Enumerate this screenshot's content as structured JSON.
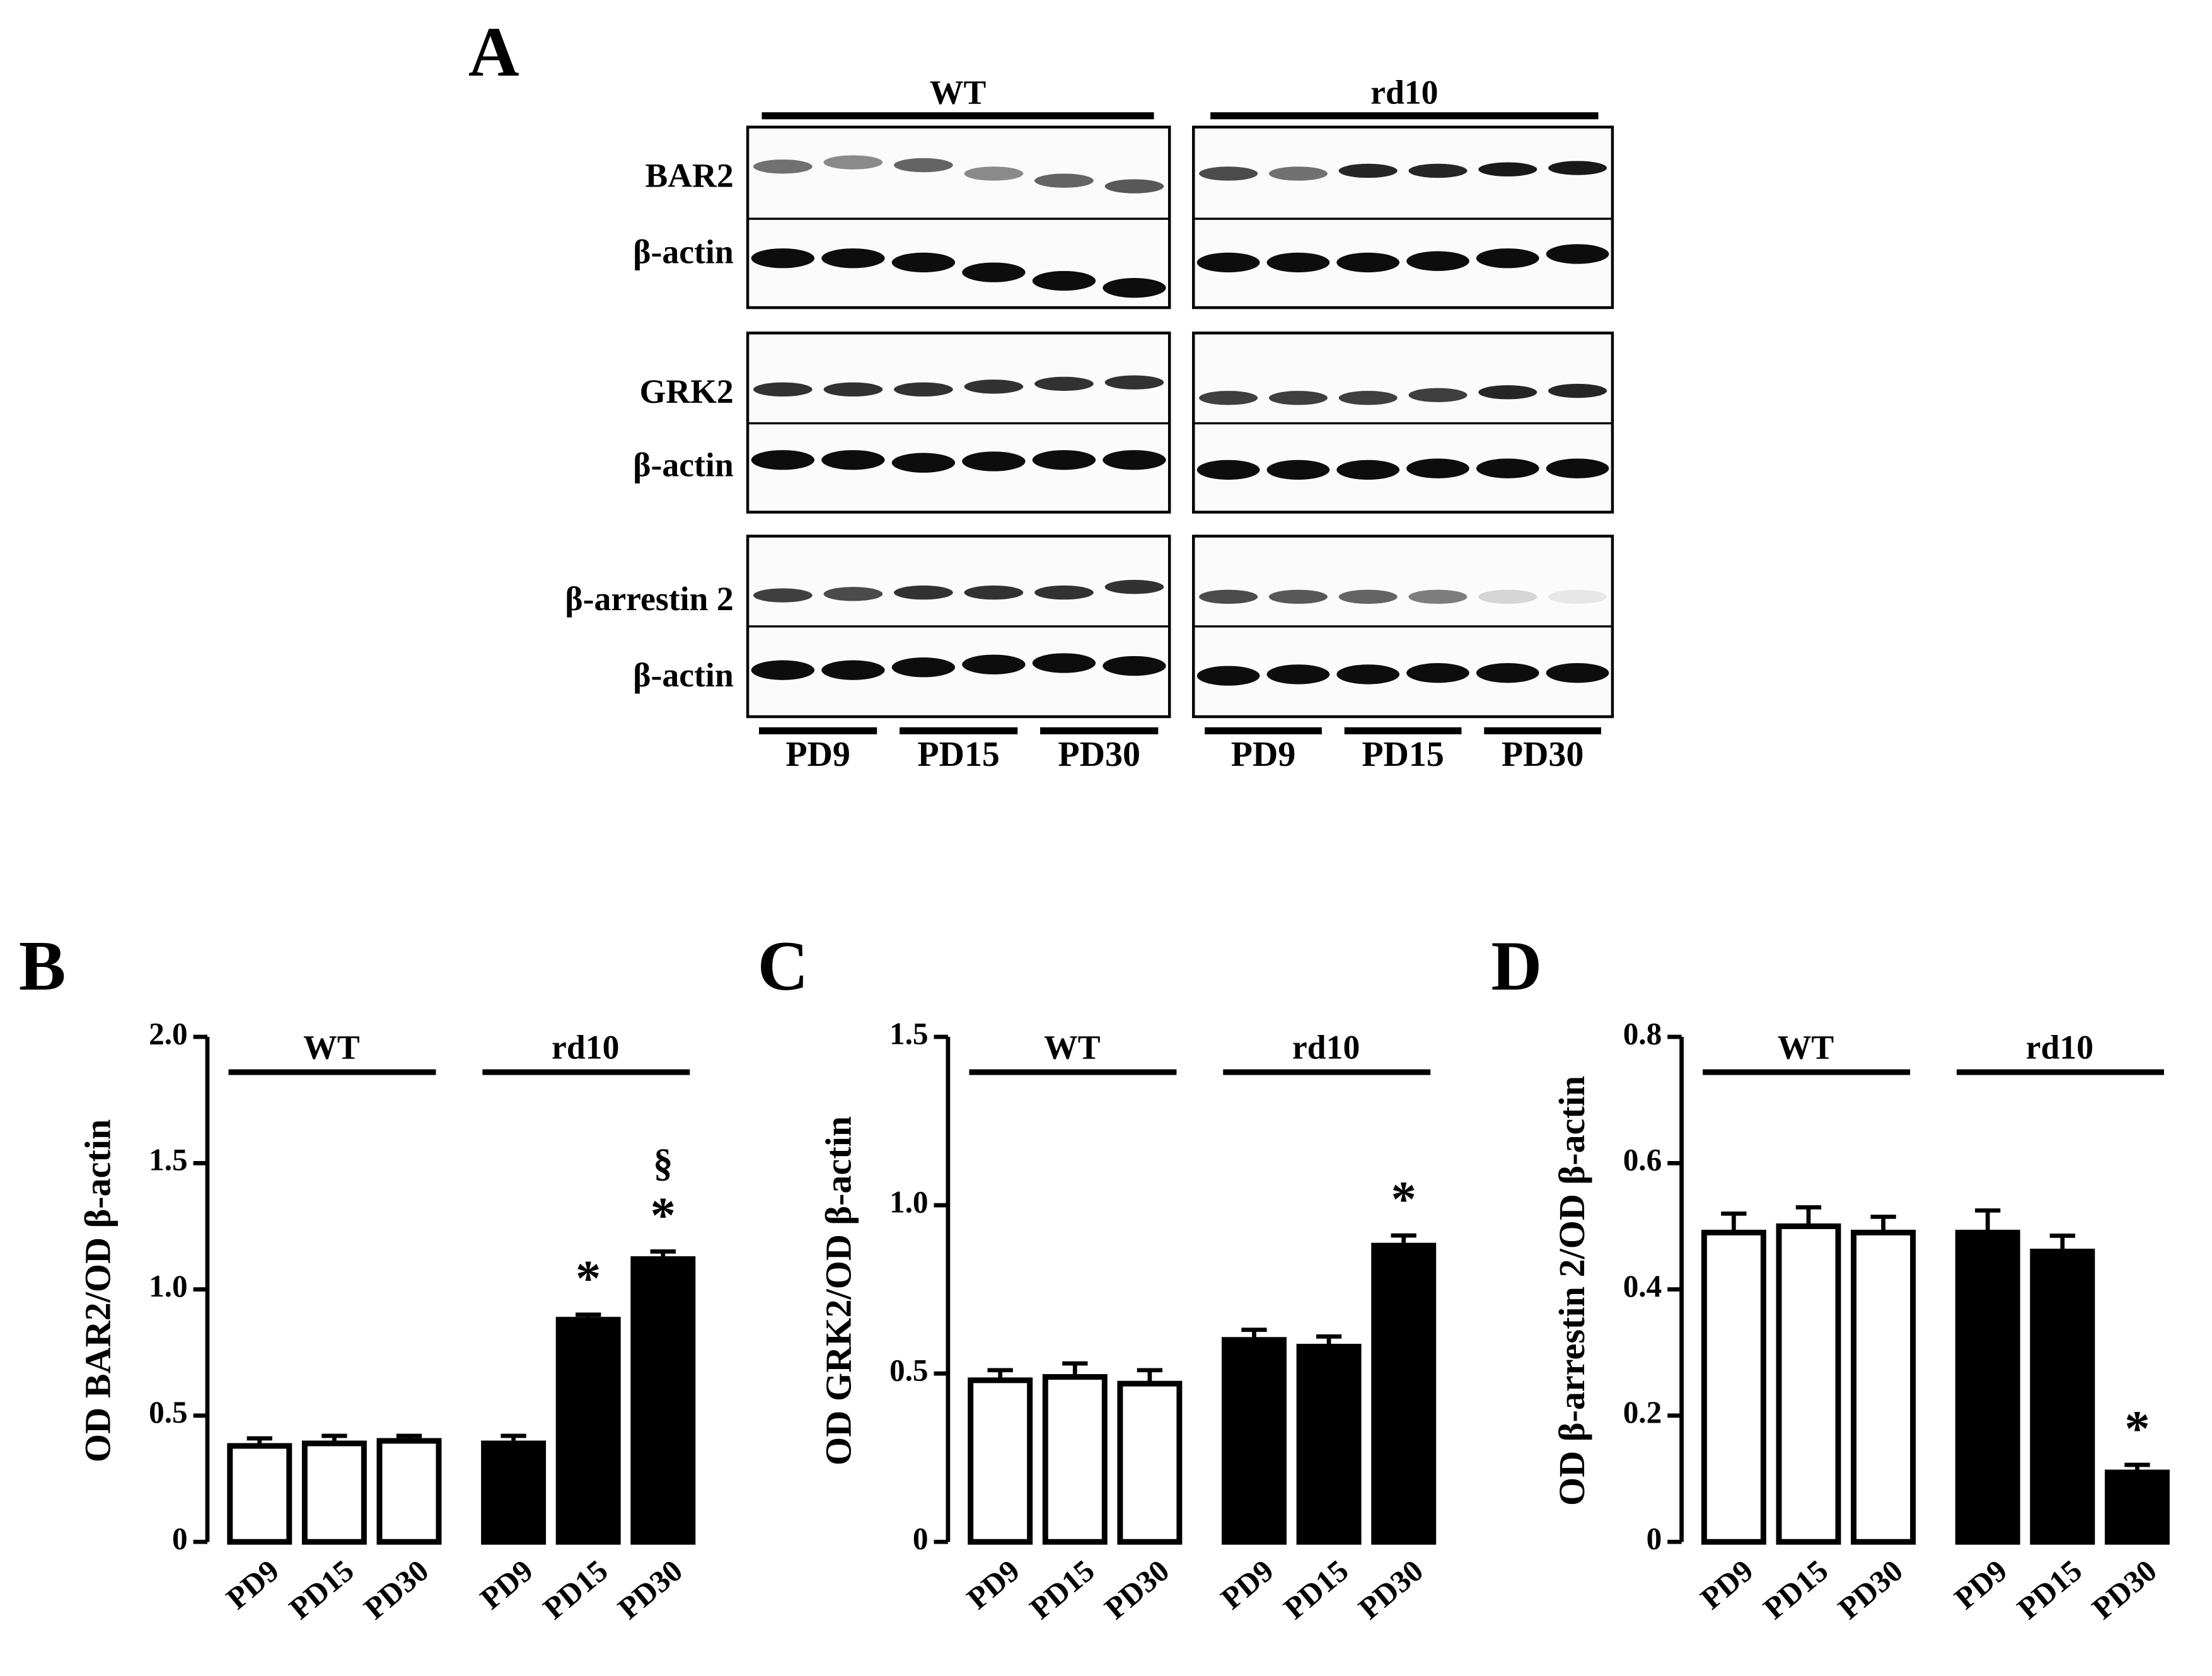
{
  "blot": {
    "panel": "A",
    "groups": [
      "WT",
      "rd10"
    ],
    "rows": [
      "BAR2",
      "β-actin",
      "GRK2",
      "β-actin",
      "β-arrestin 2",
      "β-actin"
    ],
    "lanes": [
      "PD9",
      "PD15",
      "PD30"
    ]
  },
  "chart_data": [
    {
      "type": "bar",
      "panel": "B",
      "y_label": "OD BAR2/OD β-actin",
      "categories": [
        "PD9",
        "PD15",
        "PD30"
      ],
      "series": [
        {
          "name": "WT",
          "color": "#ffffff",
          "values": [
            0.38,
            0.39,
            0.4
          ],
          "errors": [
            0.03,
            0.03,
            0.02
          ],
          "annotations": [
            [],
            [],
            []
          ]
        },
        {
          "name": "rd10",
          "color": "#000000",
          "values": [
            0.39,
            0.88,
            1.12
          ],
          "errors": [
            0.03,
            0.02,
            0.03
          ],
          "annotations": [
            [],
            [
              "*"
            ],
            [
              "*",
              "§"
            ]
          ]
        }
      ],
      "ylim": [
        0,
        2
      ],
      "yticks": [
        0,
        0.5,
        {
          "value": 1,
          "label": "1.0"
        },
        1.5,
        {
          "value": 2,
          "label": "2.0"
        }
      ]
    },
    {
      "type": "bar",
      "panel": "C",
      "y_label": "OD GRK2/OD β-actin",
      "categories": [
        "PD9",
        "PD15",
        "PD30"
      ],
      "series": [
        {
          "name": "WT",
          "color": "#ffffff",
          "values": [
            0.48,
            0.49,
            0.47
          ],
          "errors": [
            0.03,
            0.04,
            0.04
          ],
          "annotations": [
            [],
            [],
            []
          ]
        },
        {
          "name": "rd10",
          "color": "#000000",
          "values": [
            0.6,
            0.58,
            0.88
          ],
          "errors": [
            0.03,
            0.03,
            0.03
          ],
          "annotations": [
            [],
            [],
            [
              "*"
            ]
          ]
        }
      ],
      "ylim": [
        0,
        1.5
      ],
      "yticks": [
        0,
        0.5,
        {
          "value": 1,
          "label": "1.0"
        },
        1.5
      ]
    },
    {
      "type": "bar",
      "panel": "D",
      "y_label": "OD β-arrestin 2/OD β-actin",
      "categories": [
        "PD9",
        "PD15",
        "PD30"
      ],
      "series": [
        {
          "name": "WT",
          "color": "#ffffff",
          "values": [
            0.49,
            0.5,
            0.49
          ],
          "errors": [
            0.03,
            0.03,
            0.025
          ],
          "annotations": [
            [],
            [],
            []
          ]
        },
        {
          "name": "rd10",
          "color": "#000000",
          "values": [
            0.49,
            0.46,
            0.11
          ],
          "errors": [
            0.035,
            0.025,
            0.012
          ],
          "annotations": [
            [],
            [],
            [
              "*"
            ]
          ]
        }
      ],
      "ylim": [
        0,
        0.8
      ],
      "yticks": [
        0,
        0.2,
        0.4,
        0.6,
        0.8
      ]
    }
  ]
}
